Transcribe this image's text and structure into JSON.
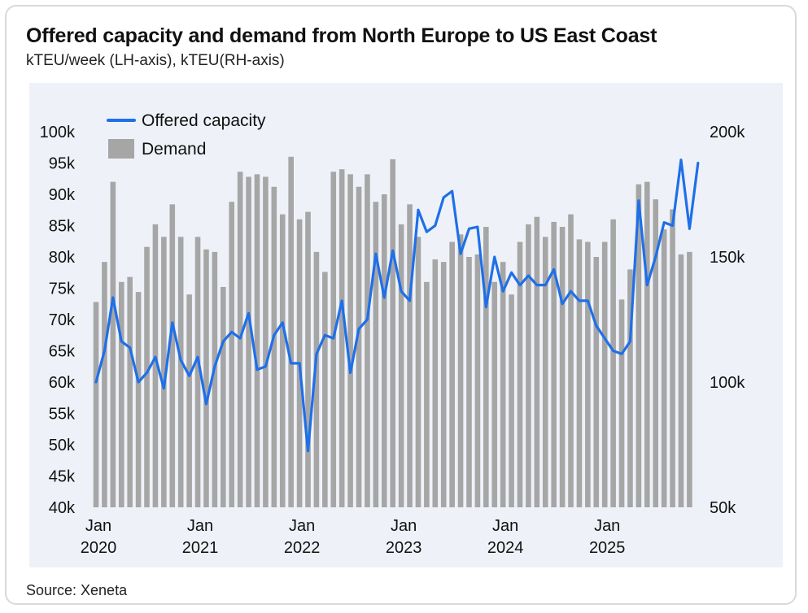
{
  "header": {
    "title": "Offered capacity and demand from North Europe to US East Coast",
    "subtitle": "kTEU/week (LH-axis), kTEU(RH-axis)"
  },
  "footer": {
    "source": "Source: Xeneta"
  },
  "colors": {
    "capacity_line": "#1f6fe8",
    "demand_bar": "#a6a6a6",
    "plot_background": "#eef2f8"
  },
  "chart_data": {
    "type": "bar+line",
    "title": "Offered capacity and demand from North Europe to US East Coast",
    "left_axis": {
      "label": "kTEU/week",
      "min": 40,
      "max": 100,
      "ticks": [
        "100k",
        "95k",
        "90k",
        "85k",
        "80k",
        "75k",
        "70k",
        "65k",
        "60k",
        "55k",
        "50k",
        "45k",
        "40k"
      ]
    },
    "right_axis": {
      "label": "kTEU",
      "min": 50,
      "max": 200,
      "ticks": [
        "200k",
        "150k",
        "100k",
        "50k"
      ]
    },
    "x_ticks": [
      {
        "month": "Jan",
        "year": "2020",
        "index": 0
      },
      {
        "month": "Jan",
        "year": "2021",
        "index": 12
      },
      {
        "month": "Jan",
        "year": "2022",
        "index": 24
      },
      {
        "month": "Jan",
        "year": "2023",
        "index": 36
      },
      {
        "month": "Jan",
        "year": "2024",
        "index": 48
      },
      {
        "month": "Jan",
        "year": "2025",
        "index": 60
      }
    ],
    "legend": [
      {
        "name": "Offered capacity",
        "kind": "line"
      },
      {
        "name": "Demand",
        "kind": "bar"
      }
    ],
    "series": [
      {
        "name": "Demand",
        "axis": "right",
        "kind": "bar",
        "start": "2020-01",
        "values": [
          132,
          148,
          180,
          140,
          142,
          136,
          154,
          163,
          158,
          171,
          158,
          135,
          158,
          153,
          152,
          138,
          172,
          184,
          182,
          183,
          182,
          178,
          167,
          190,
          165,
          168,
          152,
          144,
          184,
          185,
          183,
          178,
          183,
          172,
          175,
          189,
          163,
          171,
          158,
          140,
          149,
          148,
          156,
          159,
          150,
          151,
          162,
          140,
          148,
          135,
          156,
          163,
          166,
          158,
          164,
          162,
          167,
          157,
          156,
          150,
          156,
          165,
          133,
          145,
          179,
          180,
          173,
          161,
          169,
          151,
          152
        ],
        "unit": "kTEU"
      },
      {
        "name": "Offered capacity",
        "axis": "left",
        "kind": "line",
        "start": "2020-01",
        "values": [
          60.0,
          65.0,
          73.5,
          66.5,
          65.5,
          60.0,
          61.5,
          64.0,
          59.0,
          69.5,
          63.5,
          61.0,
          64.0,
          56.5,
          62.5,
          66.5,
          68.0,
          67.0,
          71.0,
          62.0,
          62.5,
          67.5,
          69.5,
          63.0,
          63.0,
          49.0,
          64.5,
          67.5,
          67.0,
          73.0,
          61.5,
          68.5,
          70.0,
          80.5,
          73.5,
          81.0,
          74.5,
          73.0,
          87.5,
          84.0,
          85.0,
          89.5,
          90.5,
          80.5,
          84.5,
          84.8,
          72.0,
          80.0,
          74.5,
          77.5,
          75.5,
          77.0,
          75.5,
          75.5,
          78.0,
          72.5,
          74.5,
          73.0,
          73.0,
          69.0,
          67.0,
          65.0,
          64.5,
          66.5,
          89.0,
          75.5,
          80.0,
          85.5,
          85.0,
          95.5,
          84.5,
          95.0
        ],
        "unit": "kTEU/week"
      }
    ]
  }
}
